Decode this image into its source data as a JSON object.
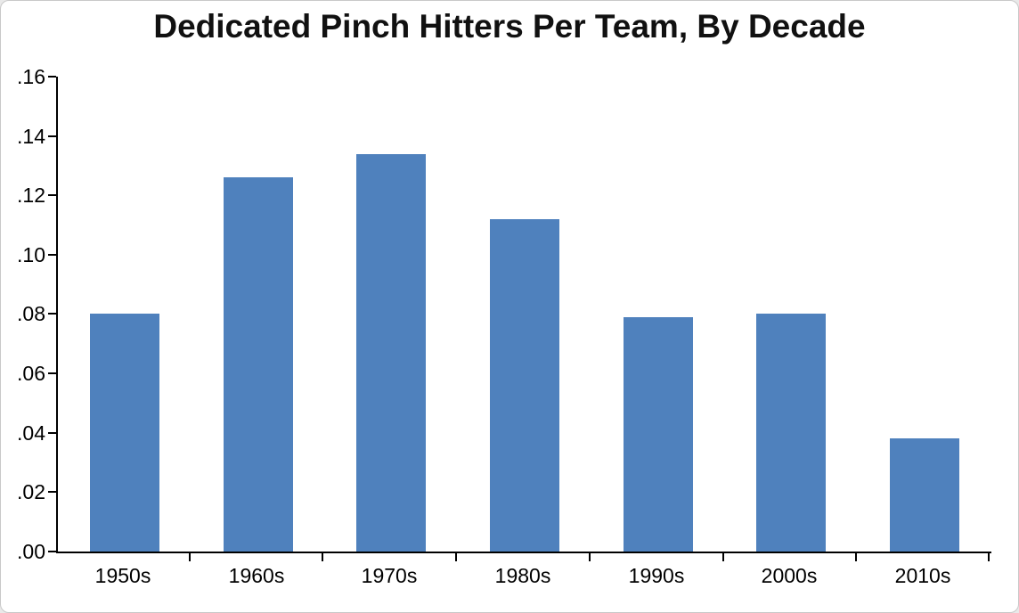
{
  "chart_data": {
    "type": "bar",
    "title": "Dedicated Pinch Hitters Per Team, By Decade",
    "categories": [
      "1950s",
      "1960s",
      "1970s",
      "1980s",
      "1990s",
      "2000s",
      "2010s"
    ],
    "values": [
      0.08,
      0.126,
      0.134,
      0.112,
      0.079,
      0.08,
      0.038
    ],
    "xlabel": "",
    "ylabel": "",
    "ylim": [
      0,
      0.16
    ],
    "ytick_step": 0.02,
    "ytick_labels": [
      ".00",
      ".02",
      ".04",
      ".06",
      ".08",
      ".10",
      ".12",
      ".14",
      ".16"
    ],
    "grid": false,
    "legend": null,
    "bar_color": "#4f81bd",
    "axis_color": "#000000",
    "background_color": "#ffffff"
  }
}
